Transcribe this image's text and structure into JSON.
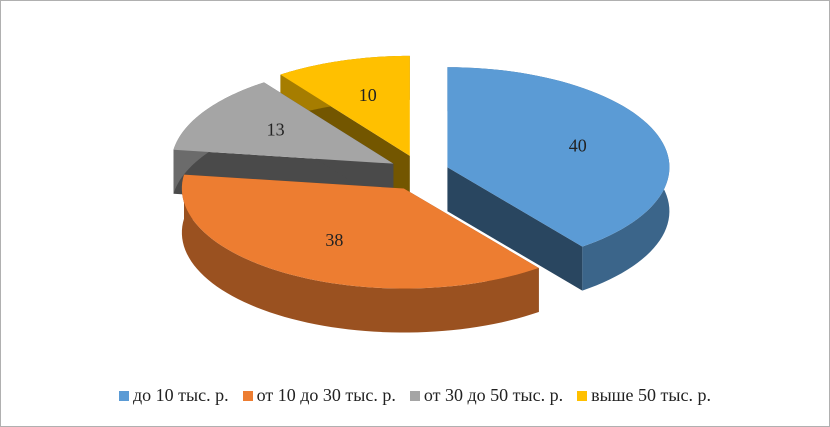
{
  "chart_data": {
    "type": "pie",
    "categories": [
      "до 10 тыс. р.",
      "от 10 до 30 тыс. р.",
      "от 30 до 50 тыс. р.",
      "выше 50 тыс. р."
    ],
    "values": [
      40,
      38,
      13,
      10
    ],
    "colors": [
      "#5b9bd5",
      "#ed7d31",
      "#a5a5a5",
      "#ffc000"
    ],
    "legend": "bottom"
  }
}
